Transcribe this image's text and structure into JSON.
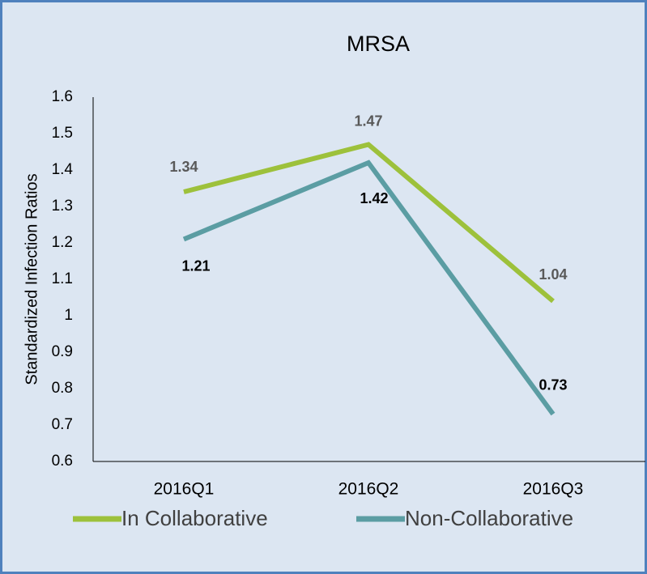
{
  "chart_data": {
    "type": "line",
    "title": "MRSA",
    "y_label": "Standardized Infection Ratios",
    "categories": [
      "2016Q1",
      "2016Q2",
      "2016Q3"
    ],
    "series": [
      {
        "name": "In Collaborative",
        "color": "#9dc13b",
        "values": [
          1.34,
          1.47,
          1.04
        ]
      },
      {
        "name": "Non-Collaborative",
        "color": "#5b9da3",
        "values": [
          1.21,
          1.42,
          0.73
        ]
      }
    ],
    "ylim": [
      0.6,
      1.6
    ],
    "yticks": [
      0.6,
      0.7,
      0.8,
      0.9,
      1,
      1.1,
      1.2,
      1.3,
      1.4,
      1.5,
      1.6
    ],
    "grid": false,
    "legend": "bottom"
  }
}
